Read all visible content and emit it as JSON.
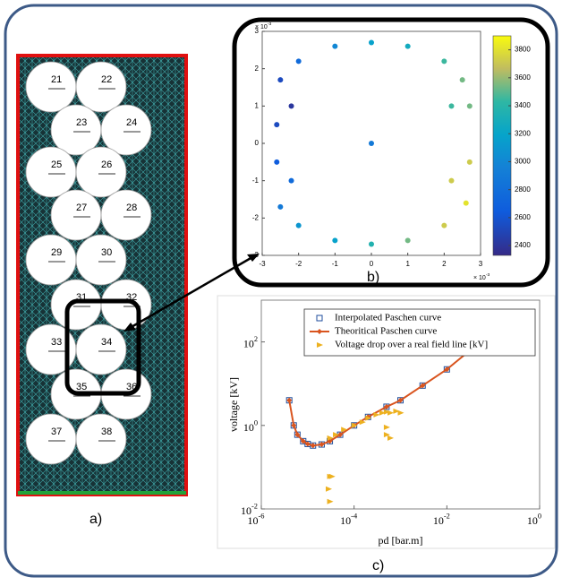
{
  "panels": {
    "a": "a)",
    "b": "b)",
    "c": "c)"
  },
  "mesh": {
    "labels": [
      "21",
      "22",
      "23",
      "24",
      "25",
      "26",
      "27",
      "28",
      "29",
      "30",
      "31",
      "32",
      "33",
      "34",
      "35",
      "36",
      "37",
      "38"
    ]
  },
  "chart_data": [
    {
      "type": "scatter",
      "xlim": [
        -3,
        3
      ],
      "ylim": [
        -3,
        3
      ],
      "xticks": [
        -3,
        -2,
        -1,
        0,
        1,
        2,
        3
      ],
      "yticks": [
        -3,
        -2,
        -1,
        0,
        1,
        2,
        3
      ],
      "x_multiplier": {
        "base": "× 10",
        "exponent": "-3"
      },
      "y_multiplier": {
        "base": "× 10",
        "exponent": "-3"
      },
      "x": [
        -2.5,
        -2.0,
        -1.0,
        0,
        1.0,
        2.0,
        2.5,
        2.7,
        2.7,
        2.6,
        2.0,
        1.0,
        0,
        -1.0,
        -2.0,
        -2.5,
        -2.6,
        -2.6,
        -2.2,
        2.2,
        2.2,
        -2.2,
        0
      ],
      "y": [
        1.7,
        2.2,
        2.6,
        2.7,
        2.6,
        2.2,
        1.7,
        1.0,
        -0.5,
        -1.6,
        -2.2,
        -2.6,
        -2.7,
        -2.6,
        -2.2,
        -1.7,
        -0.5,
        0.5,
        1.0,
        1.0,
        -1.0,
        -1.0,
        0
      ],
      "c": [
        2500,
        2700,
        2900,
        3100,
        3200,
        3400,
        3500,
        3500,
        3700,
        3800,
        3700,
        3500,
        3300,
        3100,
        3000,
        2800,
        2600,
        2500,
        2400,
        3400,
        3700,
        2700,
        2800
      ],
      "clim": [
        2330,
        3900
      ],
      "cticks": [
        2400,
        2600,
        2800,
        3000,
        3200,
        3400,
        3600,
        3800
      ]
    },
    {
      "type": "line",
      "xlabel": "pd [bar.m]",
      "ylabel": "voltage [kV]",
      "xscale": "log",
      "yscale": "log",
      "xlim": [
        1e-06,
        1
      ],
      "ylim": [
        0.01,
        1000
      ],
      "xticks": [
        {
          "value": 1e-06,
          "label": "10",
          "exponent": "-6"
        },
        {
          "value": 0.0001,
          "label": "10",
          "exponent": "-4"
        },
        {
          "value": 0.01,
          "label": "10",
          "exponent": "-2"
        },
        {
          "value": 1,
          "label": "10",
          "exponent": "0"
        }
      ],
      "yticks": [
        {
          "value": 0.01,
          "label": "10",
          "exponent": "-2"
        },
        {
          "value": 1,
          "label": "10",
          "exponent": "0"
        },
        {
          "value": 100,
          "label": "10",
          "exponent": "2"
        }
      ],
      "legend": "top-right",
      "series": [
        {
          "name": "Interpolated Paschen curve",
          "color": "#1f4e9c",
          "marker": "square",
          "line": false,
          "x": [
            4e-06,
            5e-06,
            6e-06,
            8e-06,
            1e-05,
            1.3e-05,
            2e-05,
            3e-05,
            5e-05,
            0.0001,
            0.0002,
            0.0005,
            0.001,
            0.003,
            0.01,
            0.03
          ],
          "values": [
            4,
            1.0,
            0.6,
            0.42,
            0.36,
            0.33,
            0.35,
            0.42,
            0.6,
            1.0,
            1.6,
            2.8,
            4,
            9,
            22,
            60
          ]
        },
        {
          "name": "Theoritical Paschen curve",
          "color": "#d9541e",
          "marker": "diamond",
          "line": true,
          "x": [
            4e-06,
            5e-06,
            6e-06,
            8e-06,
            1e-05,
            1.3e-05,
            2e-05,
            3e-05,
            5e-05,
            0.0001,
            0.0002,
            0.0005,
            0.001,
            0.003,
            0.01,
            0.03
          ],
          "values": [
            4,
            1.0,
            0.6,
            0.42,
            0.36,
            0.33,
            0.35,
            0.42,
            0.6,
            1.0,
            1.6,
            2.8,
            4,
            9,
            22,
            60
          ]
        },
        {
          "name": "Voltage drop over a real field line [kV]",
          "color": "#edb120",
          "marker": "triangle",
          "line": false,
          "x": [
            3e-05,
            4e-05,
            6e-05,
            0.0001,
            0.00015,
            0.0002,
            0.0003,
            0.0004,
            0.0005,
            0.0006,
            0.0008,
            0.001,
            0.0005,
            0.0005,
            0.0006,
            3e-05,
            3.3e-05,
            2.8e-05,
            3e-05
          ],
          "values": [
            0.5,
            0.6,
            0.8,
            1.0,
            1.2,
            1.5,
            1.8,
            2.0,
            2.1,
            2.0,
            2.2,
            2.0,
            0.9,
            0.6,
            0.5,
            0.06,
            0.06,
            0.03,
            0.015
          ]
        }
      ]
    }
  ]
}
